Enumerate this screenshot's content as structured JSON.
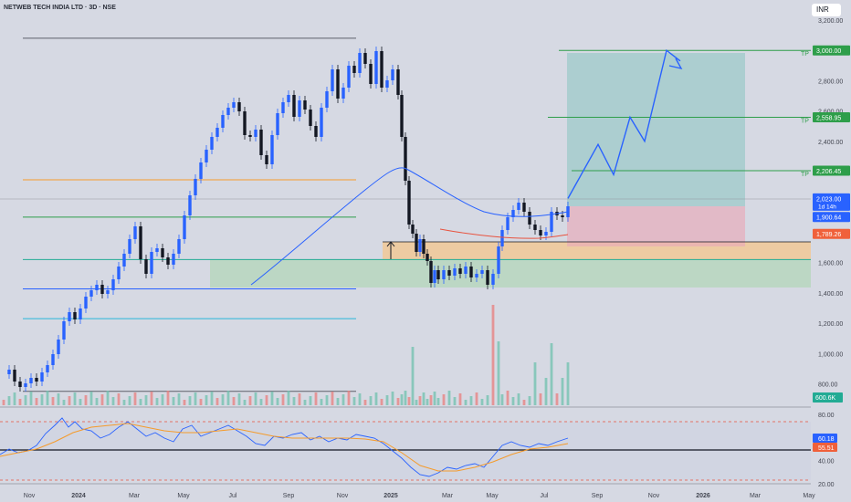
{
  "header": {
    "title": "NETWEB TECH INDIA LTD · 3D · NSE",
    "currency": "INR"
  },
  "chart_data": {
    "type": "candlestick",
    "ylim": [
      640,
      3250
    ],
    "price_ticks": [
      3200,
      3000,
      2800,
      2600,
      2400,
      2200,
      2000,
      1800,
      1600,
      1400,
      1200,
      1000,
      800
    ],
    "x_labels": [
      "Nov",
      "2024",
      "Mar",
      "May",
      "Jul",
      "Sep",
      "Nov",
      "2025",
      "Mar",
      "May",
      "Jul",
      "Sep",
      "Nov",
      "2026",
      "Mar",
      "May"
    ],
    "bold_x_labels": [
      "2024",
      "2025",
      "2026"
    ],
    "horizontal_levels": [
      {
        "price": 3080,
        "color": "#5d606b"
      },
      {
        "price": 2146,
        "color": "#f59b2b"
      },
      {
        "price": 1900,
        "color": "#2e9e4a"
      },
      {
        "price": 1620,
        "color": "#22ab94"
      },
      {
        "price": 1426,
        "color": "#2962ff"
      },
      {
        "price": 1230,
        "color": "#29b6d9"
      },
      {
        "price": 750,
        "color": "#5d606b"
      }
    ],
    "targets": [
      {
        "label": "TP",
        "price": 3000,
        "value_label": "3,000.00"
      },
      {
        "label": "TP",
        "price": 2558.95,
        "value_label": "2,558.95"
      },
      {
        "label": "TP",
        "price": 2206.45,
        "value_label": "2,206.45"
      }
    ],
    "price_labels": [
      {
        "text": "2,023.00",
        "sub": "1d 14h",
        "price": 2023,
        "color": "#2962ff"
      },
      {
        "text": "1,900.64",
        "price": 1900.64,
        "color": "#2962ff"
      },
      {
        "text": "1,789.26",
        "price": 1789.26,
        "color": "#f0603a"
      }
    ],
    "volume_label": "600.6K",
    "rsi": {
      "ticks": [
        80,
        60,
        40,
        20
      ],
      "ylim": [
        18,
        85
      ],
      "rsi_value": "60.18",
      "ma_value": "55.51"
    },
    "projection_path": [
      2023,
      2380,
      2180,
      2558.95,
      2400,
      3000,
      2930
    ]
  }
}
